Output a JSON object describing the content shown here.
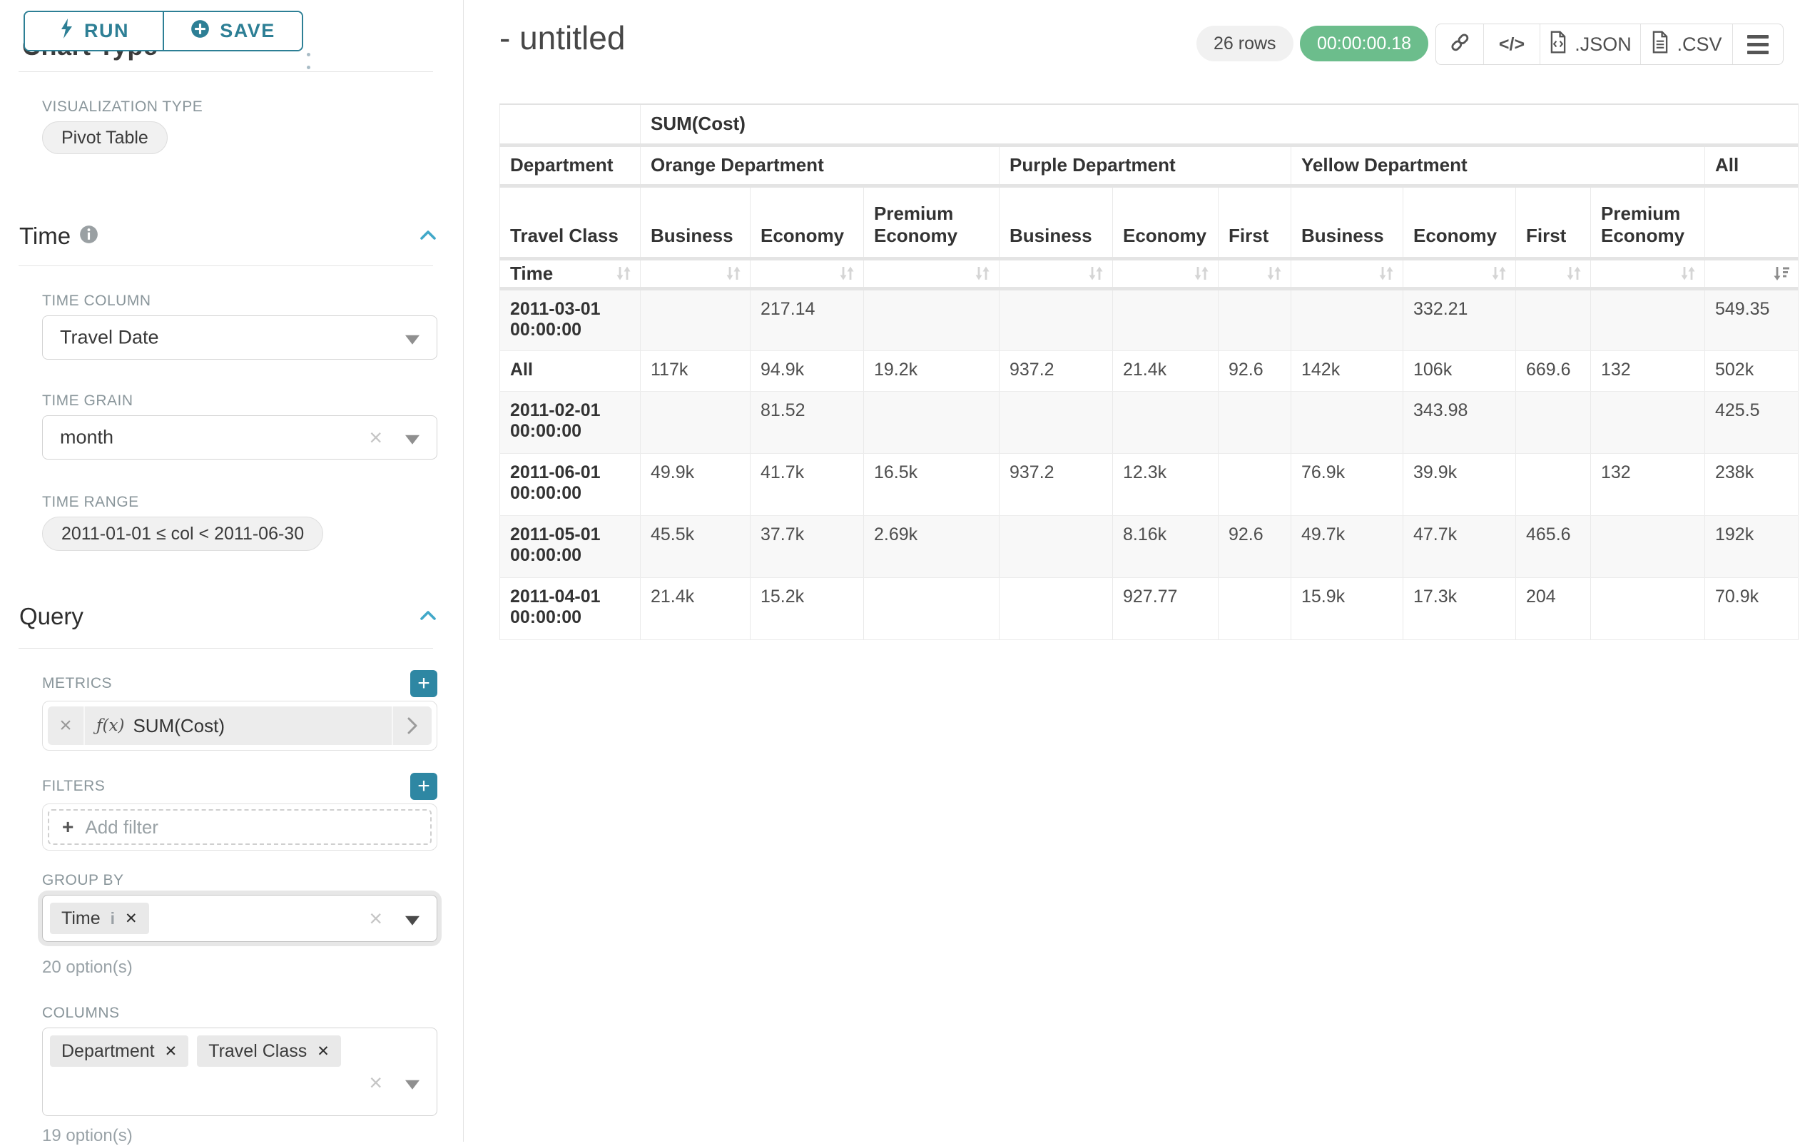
{
  "sidebar": {
    "run_button": {
      "label": "RUN"
    },
    "save_button": {
      "label": "SAVE"
    },
    "clipped_section": {
      "title": "Chart Type"
    },
    "visualization": {
      "label": "VISUALIZATION TYPE",
      "value": "Pivot Table"
    },
    "time": {
      "title": "Time",
      "time_column": {
        "label": "TIME COLUMN",
        "value": "Travel Date"
      },
      "time_grain": {
        "label": "TIME GRAIN",
        "value": "month"
      },
      "time_range": {
        "label": "TIME RANGE",
        "value": "2011-01-01 ≤ col < 2011-06-30"
      }
    },
    "query": {
      "title": "Query",
      "metrics": {
        "label": "METRICS",
        "metric": {
          "fn": "ƒ(x)",
          "name": "SUM(Cost)"
        }
      },
      "filters": {
        "label": "FILTERS",
        "placeholder": "Add filter"
      },
      "group_by": {
        "label": "GROUP BY",
        "tags": [
          {
            "label": "Time",
            "info": true
          }
        ],
        "hint": "20 option(s)"
      },
      "columns": {
        "label": "COLUMNS",
        "tags": [
          {
            "label": "Department"
          },
          {
            "label": "Travel Class"
          }
        ],
        "hint": "19 option(s)"
      }
    }
  },
  "header": {
    "title": "- untitled",
    "row_count": "26 rows",
    "timer": "00:00:00.18",
    "embed_glyph": "</>",
    "export_json": ".JSON",
    "export_csv": ".CSV"
  },
  "icons": {
    "run": "lightning-bolt",
    "save": "plus-circle",
    "section_collapse": "chevron-up",
    "select_caret": "caret-down",
    "clear": "x-mark",
    "info": "info-circle",
    "metric_fn": "function-fx",
    "metric_expand": "chevron-right",
    "add": "plus-square",
    "share": "link",
    "embed": "code",
    "json_file": "file-code",
    "csv_file": "file-lines",
    "menu": "hamburger",
    "sort_inactive": "sort-up-down",
    "sort_active": "sort-amount-desc"
  },
  "chart_data": {
    "type": "table",
    "metric_label": "SUM(Cost)",
    "row_dimension": {
      "header": "Department",
      "subheader": "Travel Class",
      "name": "Time"
    },
    "column_groups": [
      {
        "label": "Orange Department",
        "children": [
          "Business",
          "Economy",
          "Premium Economy"
        ]
      },
      {
        "label": "Purple Department",
        "children": [
          "Business",
          "Economy",
          "First"
        ]
      },
      {
        "label": "Yellow Department",
        "children": [
          "Business",
          "Economy",
          "First",
          "Premium Economy"
        ]
      },
      {
        "label": "All",
        "children": [
          ""
        ]
      }
    ],
    "rows": [
      {
        "label": "2011-03-01 00:00:00",
        "values": [
          "",
          "217.14",
          "",
          "",
          "",
          "",
          "",
          "332.21",
          "",
          "",
          "549.35"
        ]
      },
      {
        "label": "All",
        "values": [
          "117k",
          "94.9k",
          "19.2k",
          "937.2",
          "21.4k",
          "92.6",
          "142k",
          "106k",
          "669.6",
          "132",
          "502k"
        ]
      },
      {
        "label": "2011-02-01 00:00:00",
        "values": [
          "",
          "81.52",
          "",
          "",
          "",
          "",
          "",
          "343.98",
          "",
          "",
          "425.5"
        ]
      },
      {
        "label": "2011-06-01 00:00:00",
        "values": [
          "49.9k",
          "41.7k",
          "16.5k",
          "937.2",
          "12.3k",
          "",
          "76.9k",
          "39.9k",
          "",
          "132",
          "238k"
        ]
      },
      {
        "label": "2011-05-01 00:00:00",
        "values": [
          "45.5k",
          "37.7k",
          "2.69k",
          "",
          "8.16k",
          "92.6",
          "49.7k",
          "47.7k",
          "465.6",
          "",
          "192k"
        ]
      },
      {
        "label": "2011-04-01 00:00:00",
        "values": [
          "21.4k",
          "15.2k",
          "",
          "",
          "927.77",
          "",
          "15.9k",
          "17.3k",
          "204",
          "",
          "70.9k"
        ]
      }
    ],
    "sort": {
      "column": "All",
      "direction": "desc"
    }
  }
}
